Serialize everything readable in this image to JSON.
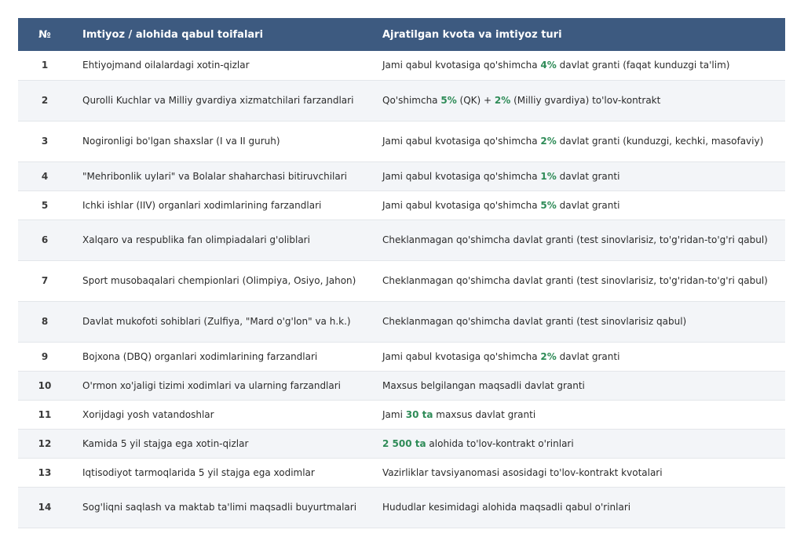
{
  "header": {
    "num": "№",
    "category": "Imtiyoz / alohida qabul toifalari",
    "quota": "Ajratilgan kvota va imtiyoz turi"
  },
  "colors": {
    "header_bg": "#3d5a80",
    "highlight": "#2e8b57"
  },
  "rows": [
    {
      "num": "1",
      "category": "Ehtiyojmand oilalardagi xotin-qizlar",
      "q1": "Jami qabul kvotasiga qo'shimcha ",
      "h1": "4%",
      "q2": " davlat granti (faqat kunduzgi ta'lim)"
    },
    {
      "num": "2",
      "category": "Qurolli Kuchlar va Milliy gvardiya xizmatchilari farzandlari",
      "q1": "Qo'shimcha ",
      "h1": "5%",
      "q2": " (QK) + ",
      "h2": "2%",
      "q3": " (Milliy gvardiya) to'lov-kontrakt"
    },
    {
      "num": "3",
      "category": "Nogironligi bo'lgan shaxslar (I va II guruh)",
      "q1": "Jami qabul kvotasiga qo'shimcha ",
      "h1": "2%",
      "q2": " davlat granti (kunduzgi, kechki, masofaviy)"
    },
    {
      "num": "4",
      "category": "\"Mehribonlik uylari\" va Bolalar shaharchasi bitiruvchilari",
      "q1": "Jami qabul kvotasiga qo'shimcha ",
      "h1": "1%",
      "q2": " davlat granti"
    },
    {
      "num": "5",
      "category": "Ichki ishlar (IIV) organlari xodimlarining farzandlari",
      "q1": "Jami qabul kvotasiga qo'shimcha ",
      "h1": "5%",
      "q2": " davlat granti"
    },
    {
      "num": "6",
      "category": "Xalqaro va respublika fan olimpiadalari g'oliblari",
      "q1": "Cheklanmagan qo'shimcha davlat granti (test sinovlarisiz, to'g'ridan-to'g'ri qabul)"
    },
    {
      "num": "7",
      "category": "Sport musobaqalari chempionlari (Olimpiya, Osiyo, Jahon)",
      "q1": "Cheklanmagan qo'shimcha davlat granti (test sinovlarisiz, to'g'ridan-to'g'ri qabul)"
    },
    {
      "num": "8",
      "category": "Davlat mukofoti sohiblari (Zulfiya, \"Mard o'g'lon\" va h.k.)",
      "q1": "Cheklanmagan qo'shimcha davlat granti (test sinovlarisiz qabul)"
    },
    {
      "num": "9",
      "category": "Bojxona (DBQ) organlari xodimlarining farzandlari",
      "q1": "Jami qabul kvotasiga qo'shimcha ",
      "h1": "2%",
      "q2": " davlat granti"
    },
    {
      "num": "10",
      "category": "O'rmon xo'jaligi tizimi xodimlari va ularning farzandlari",
      "q1": "Maxsus belgilangan maqsadli davlat granti"
    },
    {
      "num": "11",
      "category": "Xorijdagi yosh vatandoshlar",
      "q1": "Jami ",
      "h1": "30 ta",
      "q2": " maxsus davlat granti"
    },
    {
      "num": "12",
      "category": "Kamida 5 yil stajga ega xotin-qizlar",
      "q1": "",
      "h1": "2 500 ta",
      "q2": " alohida to'lov-kontrakt o'rinlari"
    },
    {
      "num": "13",
      "category": "Iqtisodiyot tarmoqlarida 5 yil stajga ega xodimlar",
      "q1": "Vazirliklar tavsiyanomasi asosidagi to'lov-kontrakt kvotalari"
    },
    {
      "num": "14",
      "category": "Sog'liqni saqlash va maktab ta'limi maqsadli buyurtmalari",
      "q1": "Hududlar kesimidagi alohida maqsadli qabul o'rinlari"
    }
  ]
}
